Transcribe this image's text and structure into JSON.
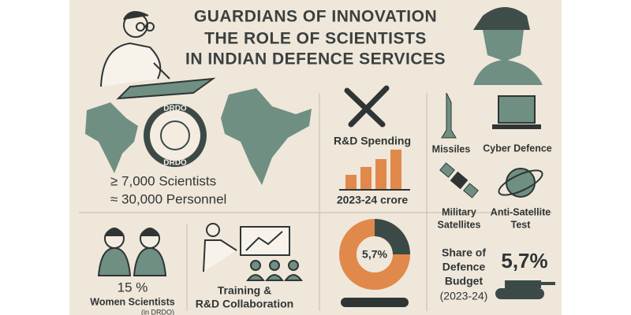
{
  "header": {
    "title_lines": [
      "GUARDIANS OF INNOVATION",
      "THE ROLE OF SCIENTISTS",
      "IN INDIAN DEFENCE SERVICES"
    ]
  },
  "drdo": {
    "logo_text": "DRDO",
    "scientists": "≥ 7,000 Scientists",
    "personnel": "≈ 30,000 Personnel"
  },
  "rnd_spending": {
    "label": "R&D Spending",
    "period": "2023-24 crore"
  },
  "areas": [
    {
      "label_lines": [
        "Missiles"
      ]
    },
    {
      "label_lines": [
        "Cyber Defence"
      ]
    },
    {
      "label_lines": [
        "Military",
        "Satellites"
      ]
    },
    {
      "label_lines": [
        "Anti-Satellite",
        "Test"
      ]
    }
  ],
  "women": {
    "share": "15 %",
    "label": "Women Scientists",
    "note": "(in DRDO)"
  },
  "training": {
    "label_lines": [
      "Training &",
      "R&D Collaboration"
    ]
  },
  "budget": {
    "donut_label": "5,7%",
    "label_lines": [
      "Share of",
      "Defence",
      "Budget",
      "(2023-24)"
    ],
    "share": "5,7%"
  }
}
